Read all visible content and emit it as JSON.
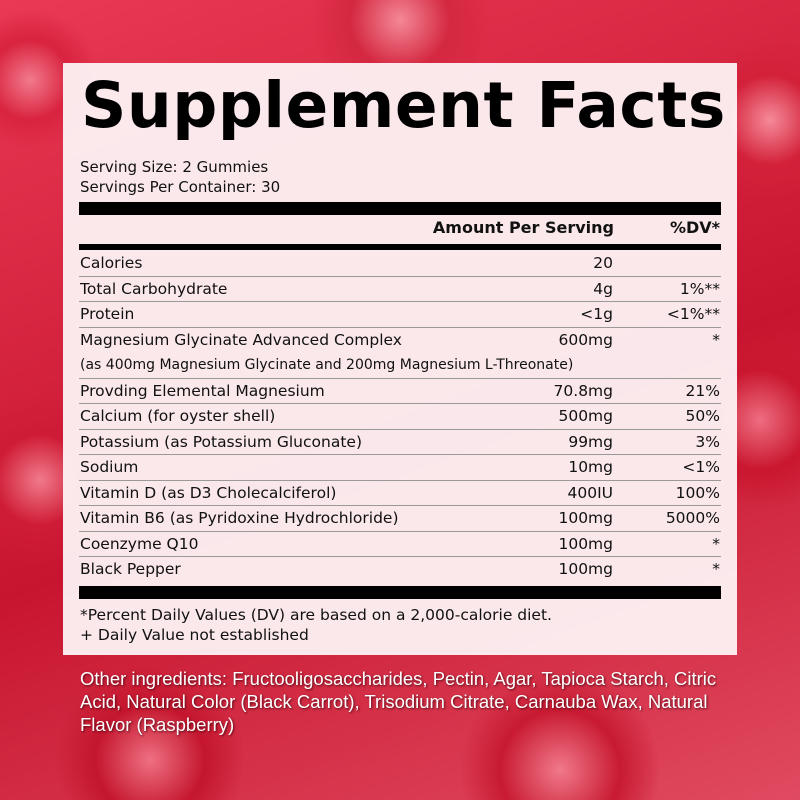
{
  "title": "Supplement Facts",
  "serving_size": "Serving Size: 2 Gummies",
  "servings_per_container": "Servings Per Container: 30",
  "header": {
    "amount": "Amount Per Serving",
    "dv": "%DV*"
  },
  "rows": [
    {
      "name": "Calories",
      "amount": "20",
      "dv": ""
    },
    {
      "name": "Total Carbohydrate",
      "amount": "4g",
      "dv": "1%**"
    },
    {
      "name": "Protein",
      "amount": "<1g",
      "dv": "<1%**"
    },
    {
      "name": "Magnesium Glycinate Advanced Complex",
      "sub": "(as 400mg Magnesium Glycinate and 200mg Magnesium L-Threonate)",
      "amount": "600mg",
      "dv": "*"
    },
    {
      "name": "Provding Elemental Magnesium",
      "amount": "70.8mg",
      "dv": "21%"
    },
    {
      "name": "Calcium (for oyster shell)",
      "amount": "500mg",
      "dv": "50%"
    },
    {
      "name": "Potassium (as Potassium Gluconate)",
      "amount": "99mg",
      "dv": "3%"
    },
    {
      "name": "Sodium",
      "amount": "10mg",
      "dv": "<1%"
    },
    {
      "name": "Vitamin D (as D3 Cholecalciferol)",
      "amount": "400IU",
      "dv": "100%"
    },
    {
      "name": "Vitamin B6 (as Pyridoxine Hydrochloride)",
      "amount": "100mg",
      "dv": "5000%"
    },
    {
      "name": "Coenzyme Q10",
      "amount": "100mg",
      "dv": "*"
    },
    {
      "name": "Black Pepper",
      "amount": "100mg",
      "dv": "*"
    }
  ],
  "footnotes": [
    "*Percent Daily Values (DV) are based on a 2,000-calorie diet.",
    "+ Daily Value not established"
  ],
  "other_ingredients": "Other ingredients:  Fructooligosaccharides, Pectin, Agar, Tapioca Starch, Citric Acid, Natural Color (Black Carrot), Trisodium Citrate, Carnauba Wax, Natural Flavor (Raspberry)"
}
